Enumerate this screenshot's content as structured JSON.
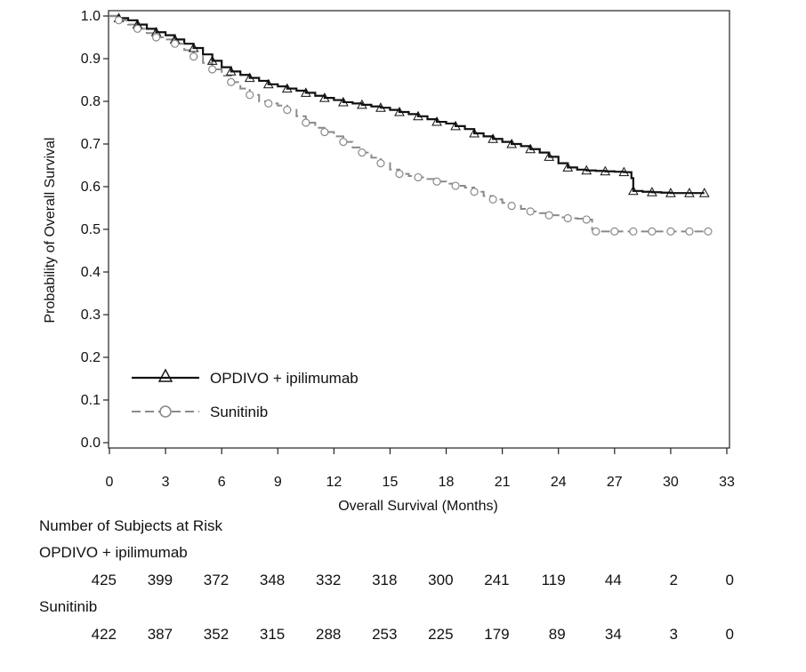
{
  "chart_data": {
    "type": "line",
    "xlabel": "Overall Survival (Months)",
    "ylabel": "Probability of Overall Survival",
    "xlim": [
      0,
      33
    ],
    "ylim": [
      0.0,
      1.0
    ],
    "xticks": [
      0,
      3,
      6,
      9,
      12,
      15,
      18,
      21,
      24,
      27,
      30,
      33
    ],
    "yticks": [
      "0.0",
      "0.1",
      "0.2",
      "0.3",
      "0.4",
      "0.5",
      "0.6",
      "0.7",
      "0.8",
      "0.9",
      "1.0"
    ],
    "grid": false,
    "legend_position": "bottom-left",
    "series": [
      {
        "name": "OPDIVO + ipilimumab",
        "marker": "triangle",
        "line_style": "solid",
        "color": "#111111",
        "x": [
          0,
          0.5,
          1,
          1.5,
          2,
          2.5,
          3,
          3.5,
          4,
          4.5,
          5,
          5.5,
          6,
          6.5,
          7,
          7.5,
          8,
          8.5,
          9,
          9.5,
          10,
          10.5,
          11,
          11.5,
          12,
          12.5,
          13,
          13.5,
          14,
          14.5,
          15,
          15.5,
          16,
          16.5,
          17,
          17.5,
          18,
          18.5,
          19,
          19.5,
          20,
          20.5,
          21,
          21.5,
          22,
          22.5,
          23,
          23.5,
          24,
          24.5,
          25,
          25.5,
          26,
          26.5,
          27,
          27.5,
          27.9,
          28.0,
          28.5,
          29,
          29.5,
          30,
          30.5,
          31,
          31.5,
          31.8
        ],
        "y": [
          1.0,
          0.995,
          0.99,
          0.98,
          0.97,
          0.962,
          0.955,
          0.945,
          0.935,
          0.925,
          0.91,
          0.895,
          0.88,
          0.87,
          0.862,
          0.855,
          0.848,
          0.84,
          0.835,
          0.83,
          0.825,
          0.82,
          0.813,
          0.808,
          0.803,
          0.798,
          0.795,
          0.792,
          0.788,
          0.785,
          0.78,
          0.775,
          0.77,
          0.765,
          0.758,
          0.752,
          0.748,
          0.742,
          0.735,
          0.725,
          0.718,
          0.712,
          0.705,
          0.7,
          0.695,
          0.688,
          0.68,
          0.67,
          0.655,
          0.645,
          0.64,
          0.638,
          0.637,
          0.636,
          0.635,
          0.634,
          0.62,
          0.59,
          0.588,
          0.587,
          0.586,
          0.585,
          0.585,
          0.585,
          0.585,
          0.585
        ],
        "at_risk": [
          425,
          399,
          372,
          348,
          332,
          318,
          300,
          241,
          119,
          44,
          2,
          0
        ]
      },
      {
        "name": "Sunitinib",
        "marker": "circle",
        "line_style": "dashed",
        "color": "#8a8a8a",
        "x": [
          0,
          0.5,
          1,
          1.5,
          2,
          2.5,
          3,
          3.5,
          4,
          4.5,
          5,
          5.5,
          6,
          6.5,
          7,
          7.5,
          8,
          8.5,
          9,
          9.5,
          10,
          10.5,
          11,
          11.5,
          12,
          12.5,
          13,
          13.5,
          14,
          14.5,
          15,
          15.5,
          16,
          16.5,
          17,
          17.5,
          18,
          18.5,
          19,
          19.5,
          20,
          20.5,
          21,
          21.5,
          22,
          22.5,
          23,
          23.5,
          24,
          24.5,
          25,
          25.5,
          25.8,
          26,
          26.5,
          27,
          27.5,
          28,
          28.5,
          29,
          29.5,
          30,
          30.5,
          31,
          31.5,
          32
        ],
        "y": [
          1.0,
          0.99,
          0.98,
          0.97,
          0.96,
          0.95,
          0.945,
          0.935,
          0.92,
          0.905,
          0.89,
          0.875,
          0.86,
          0.845,
          0.83,
          0.815,
          0.8,
          0.795,
          0.79,
          0.78,
          0.765,
          0.75,
          0.738,
          0.728,
          0.718,
          0.705,
          0.692,
          0.68,
          0.668,
          0.655,
          0.64,
          0.63,
          0.625,
          0.622,
          0.618,
          0.612,
          0.607,
          0.602,
          0.598,
          0.588,
          0.578,
          0.57,
          0.562,
          0.555,
          0.548,
          0.542,
          0.538,
          0.533,
          0.528,
          0.526,
          0.525,
          0.523,
          0.5,
          0.495,
          0.495,
          0.495,
          0.495,
          0.495,
          0.495,
          0.495,
          0.495,
          0.495,
          0.495,
          0.495,
          0.495,
          0.495
        ],
        "at_risk": [
          422,
          387,
          352,
          315,
          288,
          253,
          225,
          179,
          89,
          34,
          3,
          0
        ]
      }
    ]
  },
  "risk_table": {
    "title": "Number of Subjects at Risk",
    "rows": [
      {
        "label": "OPDIVO + ipilimumab",
        "values": [
          "425",
          "399",
          "372",
          "348",
          "332",
          "318",
          "300",
          "241",
          "119",
          "44",
          "2",
          "0"
        ]
      },
      {
        "label": "Sunitinib",
        "values": [
          "422",
          "387",
          "352",
          "315",
          "288",
          "253",
          "225",
          "179",
          "89",
          "34",
          "3",
          "0"
        ]
      }
    ]
  }
}
